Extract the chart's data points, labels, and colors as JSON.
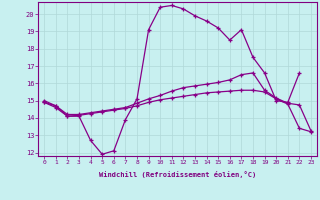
{
  "xlabel": "Windchill (Refroidissement éolien,°C)",
  "background_color": "#c8f0f0",
  "grid_color": "#b0d8d8",
  "line_color": "#880088",
  "xlim": [
    -0.5,
    23.5
  ],
  "ylim": [
    11.8,
    20.7
  ],
  "yticks": [
    12,
    13,
    14,
    15,
    16,
    17,
    18,
    19,
    20
  ],
  "xticks": [
    0,
    1,
    2,
    3,
    4,
    5,
    6,
    7,
    8,
    9,
    10,
    11,
    12,
    13,
    14,
    15,
    16,
    17,
    18,
    19,
    20,
    21,
    22,
    23
  ],
  "line1_x": [
    0,
    1,
    2,
    3,
    4,
    5,
    6,
    7,
    8,
    9,
    10,
    11,
    12,
    13,
    14,
    15,
    16,
    17,
    18,
    19,
    20,
    21,
    22
  ],
  "line1_y": [
    15.0,
    14.7,
    14.1,
    14.1,
    12.7,
    11.9,
    12.1,
    13.9,
    15.1,
    19.1,
    20.4,
    20.5,
    20.3,
    19.9,
    19.6,
    19.2,
    18.5,
    19.1,
    17.5,
    16.6,
    15.0,
    14.9,
    16.6
  ],
  "line2_x": [
    0,
    1,
    2,
    3,
    4,
    5,
    6,
    7,
    8,
    9,
    10,
    11,
    12,
    13,
    14,
    15,
    16,
    17,
    18,
    19,
    20,
    21,
    22,
    23
  ],
  "line2_y": [
    14.9,
    14.7,
    14.2,
    14.2,
    14.3,
    14.4,
    14.5,
    14.6,
    14.85,
    15.1,
    15.3,
    15.55,
    15.75,
    15.85,
    15.95,
    16.05,
    16.2,
    16.5,
    16.6,
    15.6,
    15.15,
    14.85,
    14.75,
    13.25
  ],
  "line3_x": [
    0,
    1,
    2,
    3,
    4,
    5,
    6,
    7,
    8,
    9,
    10,
    11,
    12,
    13,
    14,
    15,
    16,
    17,
    18,
    19,
    20,
    21,
    22,
    23
  ],
  "line3_y": [
    14.9,
    14.6,
    14.1,
    14.15,
    14.25,
    14.35,
    14.45,
    14.55,
    14.7,
    14.9,
    15.05,
    15.15,
    15.25,
    15.35,
    15.45,
    15.5,
    15.55,
    15.6,
    15.6,
    15.5,
    15.1,
    14.8,
    13.4,
    13.2
  ]
}
